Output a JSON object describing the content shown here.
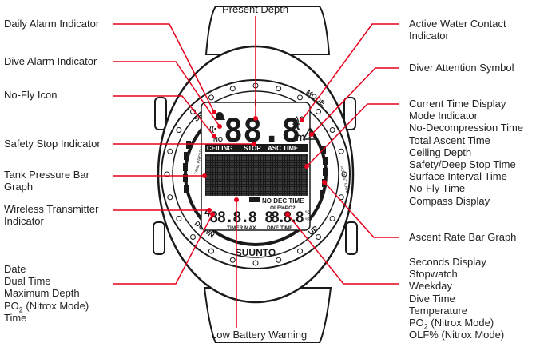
{
  "watch": {
    "brand": "SUUNTO",
    "bezel_labels": {
      "select": "SELECT",
      "mode": "MODE",
      "down": "DOWN",
      "up": "UP",
      "tank_pressure": "TANK PRESSURE",
      "ascent_rate": "ASCENT RATE"
    },
    "lcd": {
      "top_digits": "88.8",
      "unit_ft": "ft",
      "unit_m": "m",
      "ac": "AC",
      "no": "NO",
      "ceiling": "CEILING",
      "stop": "STOP",
      "asc_time": "ASC TIME",
      "no_dec_time": "NO DEC TIME",
      "olf_po2": "OLF%PO2",
      "bottom_left_digits": "88.8.8",
      "bottom_right_digits": "88.8.8",
      "unit_c": "°C",
      "unit_f": "°F",
      "timer_max": "TIMER MAX",
      "dive_time": "DIVE TIME"
    }
  },
  "labels": {
    "present_depth": "Present Depth",
    "daily_alarm": "Daily Alarm Indicator",
    "dive_alarm": "Dive Alarm Indicator",
    "no_fly": "No-Fly Icon",
    "safety_stop": "Safety Stop Indicator",
    "tank_pressure_line1": "Tank Pressure Bar",
    "tank_pressure_line2": "Graph",
    "wireless_line1": "Wireless Transmitter",
    "wireless_line2": "Indicator",
    "active_water_line1": "Active Water Contact",
    "active_water_line2": "Indicator",
    "diver_attention": "Diver Attention Symbol",
    "ascent_rate": "Ascent Rate Bar Graph",
    "low_battery": "Low Battery Warning",
    "right_list": [
      "Current Time Display",
      "Mode Indicator",
      "No-Decompression Time",
      "Total Ascent Time",
      "Ceiling Depth",
      "Safety/Deep Stop Time",
      "Surface Interval Time",
      "No-Fly Time",
      "Compass Display"
    ],
    "left_bottom_list": [
      "Date",
      "Dual Time",
      "Maximum Depth",
      "PO",
      "Time"
    ],
    "left_bottom_sub": "2",
    "left_bottom_nitrox": " (Nitrox Mode)",
    "right_bottom_list": [
      "Seconds Display",
      "Stopwatch",
      "Weekday",
      "Dive Time",
      "Temperature",
      "PO",
      "OLF% (Nitrox Mode)"
    ],
    "right_bottom_sub": "2",
    "right_bottom_nitrox": " (Nitrox Mode)"
  },
  "colors": {
    "leader": "#e8001c",
    "ink": "#1a1a1a",
    "strap": "#ffffff"
  }
}
